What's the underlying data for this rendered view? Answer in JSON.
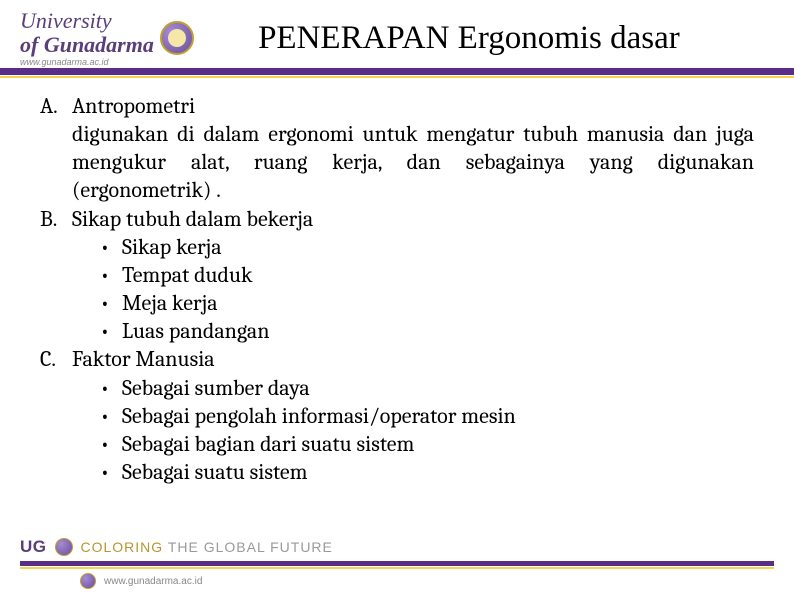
{
  "header": {
    "logo_line1": "University",
    "logo_line2": "of Gunadarma",
    "logo_sub": "www.gunadarma.ac.id",
    "title": "PENERAPAN Ergonomis dasar"
  },
  "colors": {
    "purple": "#5a2e87",
    "yellow": "#f9d34a",
    "logo_purple": "#5a3e7a",
    "slogan_gray": "#9a9a9a",
    "slogan_accent": "#b89530",
    "background": "#ffffff",
    "text": "#000000"
  },
  "content": {
    "items": [
      {
        "marker": "A.",
        "heading": "Antropometri",
        "body": "digunakan di dalam ergonomi untuk mengatur tubuh manusia dan juga mengukur alat, ruang kerja, dan sebagainya yang digunakan (ergonometrik) .",
        "subs": []
      },
      {
        "marker": "B.",
        "heading": "Sikap tubuh dalam bekerja",
        "body": "",
        "subs": [
          "Sikap kerja",
          "Tempat duduk",
          "Meja kerja",
          "Luas pandangan"
        ]
      },
      {
        "marker": "C.",
        "heading": "Faktor Manusia",
        "body": "",
        "subs": [
          "Sebagai sumber daya",
          "Sebagai pengolah informasi/operator mesin",
          "Sebagai bagian dari suatu sistem",
          "Sebagai suatu sistem"
        ]
      }
    ]
  },
  "footer": {
    "ug": "UG",
    "slogan_accent": "COLORING",
    "slogan_rest": " THE GLOBAL FUTURE",
    "url": "www.gunadarma.ac.id"
  }
}
